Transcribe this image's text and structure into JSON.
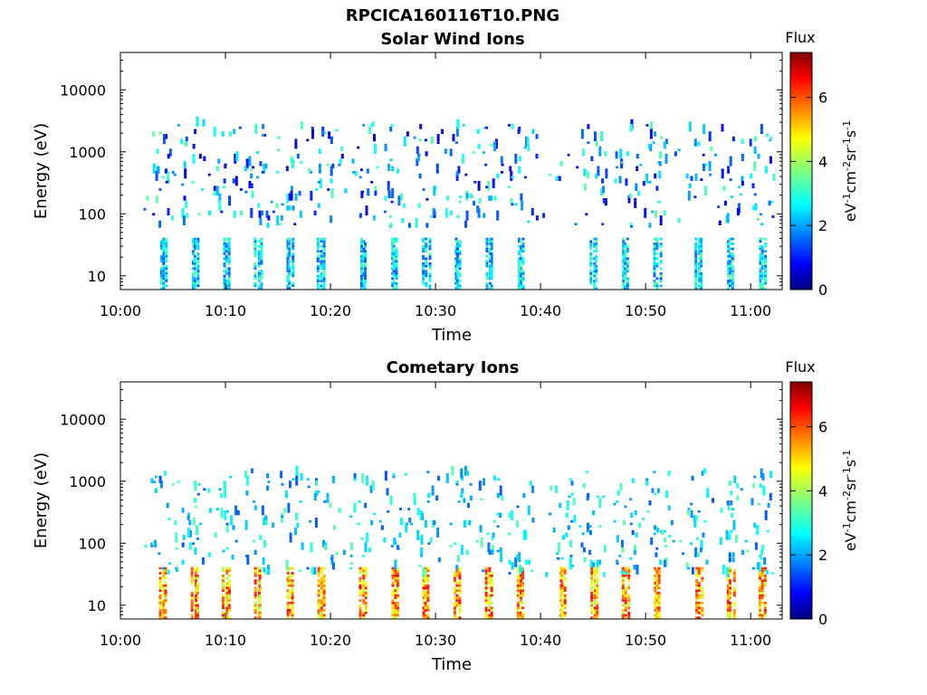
{
  "page": {
    "title": "RPCICA160116T10.PNG"
  },
  "colorbar": {
    "label": "Flux",
    "units_text": "eV",
    "units_parts": [
      "eV",
      "-1",
      "cm",
      "-2",
      "sr",
      "-1",
      "s",
      "-1"
    ],
    "ticks": [
      "0",
      "2",
      "4",
      "6"
    ],
    "range": [
      0,
      7.4
    ],
    "colormap": "jet"
  },
  "chart_data": [
    {
      "type": "heatmap",
      "title": "Solar Wind Ions",
      "xlabel": "Time",
      "ylabel": "Energy (eV)",
      "x_range": [
        "10:00",
        "11:03"
      ],
      "x_ticks": [
        "10:00",
        "10:10",
        "10:20",
        "10:30",
        "10:40",
        "10:50",
        "11:00"
      ],
      "y_scale": "log",
      "y_range": [
        6,
        40000
      ],
      "y_ticks": [
        "10",
        "100",
        "1000",
        "10000"
      ],
      "grid": false,
      "z_label": "Flux",
      "z_range": [
        0,
        7.4
      ],
      "pulse_times": [
        "10:04",
        "10:07",
        "10:10",
        "10:13",
        "10:16",
        "10:19",
        "10:23",
        "10:26",
        "10:29",
        "10:32",
        "10:35",
        "10:38",
        "10:45",
        "10:48",
        "10:51",
        "10:55",
        "10:58",
        "11:01"
      ],
      "low_energy_band": [
        6,
        40
      ],
      "low_band_flux": [
        1.5,
        3.5
      ],
      "scatter_energy_band": [
        60,
        3000
      ],
      "scatter_flux": [
        0.5,
        3.5
      ]
    },
    {
      "type": "heatmap",
      "title": "Cometary Ions",
      "xlabel": "Time",
      "ylabel": "Energy (eV)",
      "x_range": [
        "10:00",
        "11:03"
      ],
      "x_ticks": [
        "10:00",
        "10:10",
        "10:20",
        "10:30",
        "10:40",
        "10:50",
        "11:00"
      ],
      "y_scale": "log",
      "y_range": [
        6,
        40000
      ],
      "y_ticks": [
        "10",
        "100",
        "1000",
        "10000"
      ],
      "grid": false,
      "z_label": "Flux",
      "z_range": [
        0,
        7.4
      ],
      "pulse_times": [
        "10:04",
        "10:07",
        "10:10",
        "10:13",
        "10:16",
        "10:19",
        "10:23",
        "10:26",
        "10:29",
        "10:32",
        "10:35",
        "10:38",
        "10:42",
        "10:45",
        "10:48",
        "10:51",
        "10:55",
        "10:58",
        "11:01"
      ],
      "low_energy_band": [
        6,
        40
      ],
      "low_band_flux": [
        4,
        6.5
      ],
      "scatter_energy_band": [
        30,
        1500
      ],
      "scatter_flux": [
        1.5,
        3.5
      ]
    }
  ]
}
